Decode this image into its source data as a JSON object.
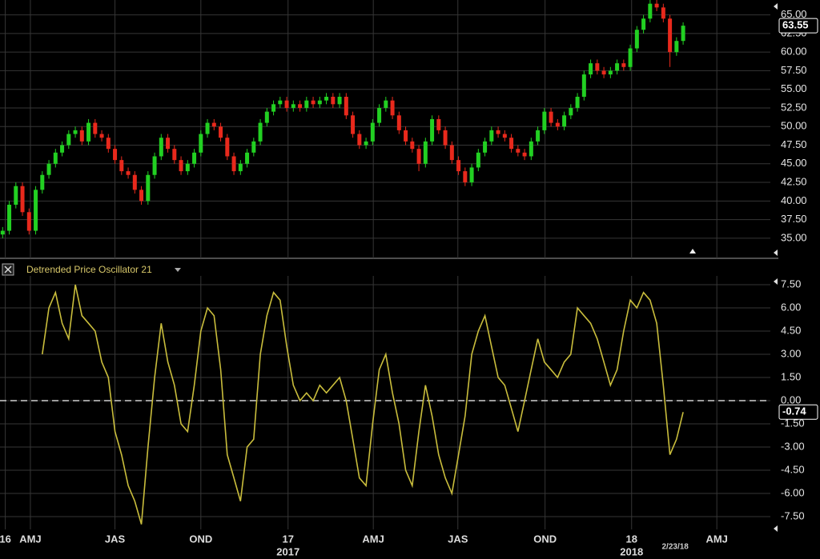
{
  "chart_data": [
    {
      "type": "candlestick",
      "up_color": "#22d022",
      "down_color": "#e8291c",
      "ylim": [
        32.3,
        67.0
      ],
      "yticks": [
        {
          "value": 35,
          "label": "35.00"
        },
        {
          "value": 37.5,
          "label": "37.50"
        },
        {
          "value": 40,
          "label": "40.00"
        },
        {
          "value": 42.5,
          "label": "42.50"
        },
        {
          "value": 45,
          "label": "45.00"
        },
        {
          "value": 47.5,
          "label": "47.50"
        },
        {
          "value": 50,
          "label": "50.00"
        },
        {
          "value": 52.5,
          "label": "52.50"
        },
        {
          "value": 55,
          "label": "55.00"
        },
        {
          "value": 57.5,
          "label": "57.50"
        },
        {
          "value": 60,
          "label": "60.00"
        },
        {
          "value": 62.5,
          "label": "62.50"
        },
        {
          "value": 65,
          "label": "65.00"
        }
      ],
      "grid": true,
      "xlim": [
        -0.4,
        116.2
      ],
      "open": [
        35.5,
        36.0,
        39.5,
        42.0,
        38.5,
        36.0,
        41.5,
        43.5,
        45.0,
        46.5,
        47.5,
        49.0,
        49.5,
        48.0,
        50.5,
        49.0,
        48.5,
        47.0,
        45.5,
        44.0,
        43.5,
        41.5,
        40.0,
        43.5,
        46.0,
        48.5,
        47.0,
        45.5,
        44.0,
        45.0,
        46.5,
        49.0,
        50.5,
        50.0,
        48.5,
        46.0,
        44.0,
        45.0,
        46.5,
        48.0,
        50.5,
        52.0,
        53.0,
        53.5,
        52.5,
        53.0,
        52.5,
        53.5,
        53.0,
        53.5,
        54.0,
        53.0,
        54.0,
        51.5,
        49.0,
        47.5,
        48.0,
        50.5,
        52.5,
        53.5,
        51.5,
        49.5,
        48.0,
        47.0,
        45.0,
        48.0,
        51.0,
        49.5,
        47.5,
        45.5,
        44.0,
        42.5,
        44.5,
        46.5,
        48.0,
        49.5,
        49.0,
        48.5,
        47.0,
        46.5,
        46.0,
        48.0,
        49.5,
        52.0,
        50.5,
        50.0,
        51.5,
        52.5,
        54.0,
        57.0,
        58.5,
        57.5,
        57.0,
        57.5,
        58.5,
        58.0,
        60.5,
        63.0,
        64.5,
        66.5,
        66.0,
        64.5,
        60.0,
        61.5
      ],
      "high": [
        36.5,
        40.0,
        42.5,
        42.5,
        39.0,
        42.0,
        44.0,
        45.5,
        47.0,
        48.0,
        49.5,
        50.0,
        50.0,
        51.0,
        51.0,
        49.5,
        49.0,
        47.5,
        46.0,
        44.5,
        44.0,
        42.0,
        44.0,
        46.5,
        49.0,
        49.0,
        47.5,
        46.0,
        45.5,
        47.0,
        49.5,
        51.0,
        51.0,
        50.5,
        49.0,
        46.5,
        45.5,
        47.0,
        48.5,
        51.0,
        52.5,
        53.5,
        54.0,
        54.0,
        53.5,
        53.5,
        54.0,
        54.0,
        54.0,
        54.5,
        54.5,
        54.5,
        54.5,
        52.0,
        49.5,
        48.5,
        51.0,
        53.0,
        54.0,
        54.0,
        52.0,
        50.0,
        48.5,
        47.5,
        48.5,
        51.5,
        51.5,
        50.0,
        48.0,
        46.0,
        44.5,
        45.0,
        47.0,
        48.5,
        50.0,
        50.0,
        49.5,
        49.0,
        47.5,
        47.0,
        48.5,
        50.0,
        52.5,
        52.5,
        51.0,
        52.0,
        53.0,
        54.5,
        57.5,
        59.0,
        59.0,
        58.0,
        58.0,
        59.0,
        59.0,
        61.0,
        63.5,
        65.0,
        67.0,
        67.0,
        66.5,
        65.0,
        62.0,
        64.0
      ],
      "low": [
        35.0,
        35.5,
        39.0,
        38.0,
        35.5,
        35.5,
        41.0,
        43.0,
        44.5,
        46.0,
        47.0,
        48.5,
        47.5,
        47.5,
        48.5,
        48.0,
        46.5,
        45.0,
        43.5,
        43.0,
        41.0,
        39.5,
        39.5,
        43.0,
        45.5,
        46.5,
        45.0,
        43.5,
        43.5,
        44.5,
        46.0,
        48.5,
        49.5,
        48.0,
        45.5,
        43.5,
        43.5,
        44.5,
        46.0,
        47.5,
        50.0,
        51.5,
        52.5,
        52.0,
        52.0,
        52.0,
        52.0,
        52.5,
        52.5,
        53.0,
        52.5,
        52.5,
        51.0,
        48.5,
        47.0,
        47.0,
        47.5,
        50.0,
        52.0,
        51.0,
        49.0,
        47.5,
        46.5,
        44.0,
        44.5,
        47.5,
        49.0,
        47.0,
        45.0,
        43.5,
        42.0,
        42.0,
        44.0,
        46.0,
        47.5,
        48.5,
        48.0,
        46.5,
        46.0,
        45.5,
        45.5,
        47.5,
        49.0,
        50.0,
        49.5,
        49.5,
        51.0,
        52.0,
        53.5,
        56.5,
        57.0,
        56.5,
        56.5,
        57.0,
        57.5,
        57.5,
        60.0,
        62.5,
        64.0,
        65.5,
        64.0,
        58.0,
        59.5,
        61.0
      ],
      "close": [
        36.0,
        39.5,
        42.0,
        38.5,
        36.0,
        41.5,
        43.5,
        45.0,
        46.5,
        47.5,
        49.0,
        49.5,
        48.0,
        50.5,
        49.0,
        48.5,
        47.0,
        45.5,
        44.0,
        43.5,
        41.5,
        40.0,
        43.5,
        46.0,
        48.5,
        47.0,
        45.5,
        44.0,
        45.0,
        46.5,
        49.0,
        50.5,
        50.0,
        48.5,
        46.0,
        44.0,
        45.0,
        46.5,
        48.0,
        50.5,
        52.0,
        53.0,
        53.5,
        52.5,
        53.0,
        52.5,
        53.5,
        53.0,
        53.5,
        54.0,
        53.0,
        54.0,
        51.5,
        49.0,
        47.5,
        48.0,
        50.5,
        52.5,
        53.5,
        51.5,
        49.5,
        48.0,
        47.0,
        45.0,
        48.0,
        51.0,
        49.5,
        47.5,
        45.5,
        44.0,
        42.5,
        44.5,
        46.5,
        48.0,
        49.5,
        49.0,
        48.5,
        47.0,
        46.5,
        46.0,
        48.0,
        49.5,
        52.0,
        50.5,
        50.0,
        51.5,
        52.5,
        54.0,
        57.0,
        58.5,
        57.5,
        57.0,
        57.5,
        58.5,
        58.0,
        60.5,
        63.0,
        64.5,
        66.5,
        66.0,
        64.5,
        60.0,
        61.5,
        63.55
      ]
    },
    {
      "type": "line",
      "title": "Detrended Price Oscillator 21",
      "color": "#c9bd3c",
      "ylim": [
        -8.33,
        8.07
      ],
      "yticks": [
        {
          "value": 7.5,
          "label": "7.50"
        },
        {
          "value": 6,
          "label": "6.00"
        },
        {
          "value": 4.5,
          "label": "4.50"
        },
        {
          "value": 3,
          "label": "3.00"
        },
        {
          "value": 1.5,
          "label": "1.50"
        },
        {
          "value": 0,
          "label": "0.00"
        },
        {
          "value": -1.5,
          "label": "-1.50"
        },
        {
          "value": -3,
          "label": "-3.00"
        },
        {
          "value": -4.5,
          "label": "-4.50"
        },
        {
          "value": -6,
          "label": "-6.00"
        },
        {
          "value": -7.5,
          "label": "-7.50"
        }
      ],
      "grid": true,
      "zero_line": 0,
      "xlim": [
        -0.4,
        116.2
      ],
      "xticks": [
        {
          "value": 0.4,
          "label": "16"
        },
        {
          "value": 4.2,
          "label": "AMJ"
        },
        {
          "value": 17.0,
          "label": "JAS"
        },
        {
          "value": 30.0,
          "label": "OND"
        },
        {
          "value": 43.2,
          "label": "17"
        },
        {
          "value": 56.1,
          "label": "AMJ"
        },
        {
          "value": 68.9,
          "label": "JAS"
        },
        {
          "value": 82.1,
          "label": "OND"
        },
        {
          "value": 95.2,
          "label": "18"
        },
        {
          "value": 108.1,
          "label": "AMJ"
        }
      ],
      "year_labels": [
        {
          "value": 43.2,
          "label": "2017"
        },
        {
          "value": 95.2,
          "label": "2018"
        }
      ],
      "annotations": [
        {
          "x": 101.8,
          "text": "2/23/18"
        }
      ],
      "values": [
        null,
        null,
        null,
        null,
        null,
        null,
        3.0,
        6.0,
        7.0,
        5.0,
        4.0,
        7.5,
        5.5,
        5.0,
        4.5,
        2.5,
        1.5,
        -2.0,
        -3.5,
        -5.5,
        -6.5,
        -8.0,
        -3.0,
        1.5,
        5.0,
        2.5,
        1.0,
        -1.5,
        -2.0,
        1.0,
        4.5,
        6.0,
        5.5,
        2.0,
        -3.5,
        -5.0,
        -6.5,
        -3.0,
        -2.5,
        3.0,
        5.5,
        7.0,
        6.5,
        3.5,
        1.0,
        0.0,
        0.5,
        0.0,
        1.0,
        0.5,
        1.0,
        1.5,
        0.0,
        -2.5,
        -5.0,
        -5.5,
        -1.5,
        2.0,
        3.0,
        0.5,
        -1.5,
        -4.5,
        -5.5,
        -2.0,
        1.0,
        -1.0,
        -3.5,
        -5.0,
        -6.0,
        -3.5,
        -1.0,
        3.0,
        4.5,
        5.5,
        3.5,
        1.5,
        1.0,
        -0.5,
        -2.0,
        0.0,
        2.0,
        4.0,
        2.5,
        2.0,
        1.5,
        2.5,
        3.0,
        6.0,
        5.5,
        5.0,
        4.0,
        2.5,
        1.0,
        2.0,
        4.5,
        6.5,
        6.0,
        7.0,
        6.5,
        5.0,
        1.0,
        -3.5,
        -2.5,
        -0.74
      ]
    }
  ]
}
